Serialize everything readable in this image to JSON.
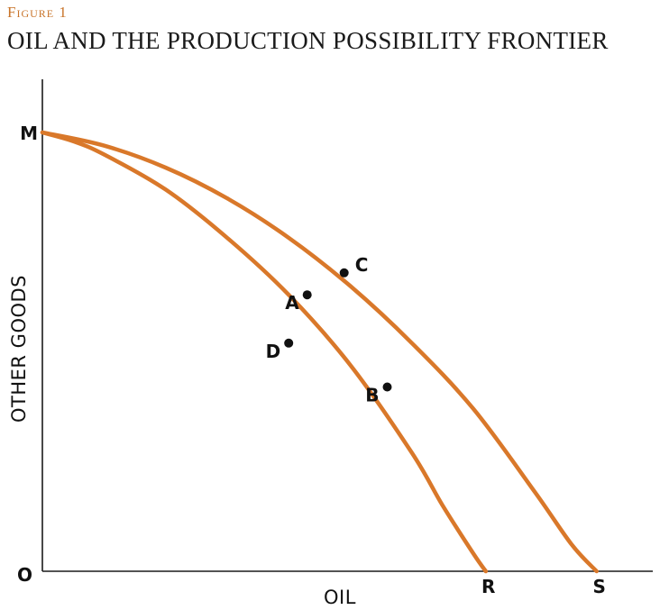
{
  "figure_label": "Figure 1",
  "title": "OIL AND THE PRODUCTION POSSIBILITY FRONTIER",
  "chart_data": {
    "type": "line",
    "xlabel": "OIL",
    "ylabel": "OTHER GOODS",
    "origin_label": "O",
    "xlim": [
      0,
      100
    ],
    "ylim": [
      0,
      100
    ],
    "curve_color": "#d9782a",
    "grid": false,
    "series": [
      {
        "key": "inner",
        "start_label": "M",
        "end_label": "R",
        "x": [
          0,
          5,
          10,
          20,
          30,
          40,
          50,
          60,
          65,
          70,
          72
        ],
        "y": [
          100,
          98,
          95,
          87,
          76,
          63,
          47,
          27,
          15,
          4,
          0
        ]
      },
      {
        "key": "outer",
        "start_label": "M",
        "end_label": "S",
        "x": [
          0,
          10,
          20,
          30,
          40,
          50,
          60,
          70,
          80,
          86,
          90
        ],
        "y": [
          100,
          97,
          92,
          85,
          76,
          65,
          52,
          37,
          18,
          6,
          0
        ]
      }
    ],
    "points": [
      {
        "label": "A",
        "x": 43,
        "y": 63,
        "label_side": "left"
      },
      {
        "label": "B",
        "x": 56,
        "y": 42,
        "label_side": "left"
      },
      {
        "label": "C",
        "x": 49,
        "y": 68,
        "label_side": "right"
      },
      {
        "label": "D",
        "x": 40,
        "y": 52,
        "label_side": "left"
      }
    ]
  }
}
